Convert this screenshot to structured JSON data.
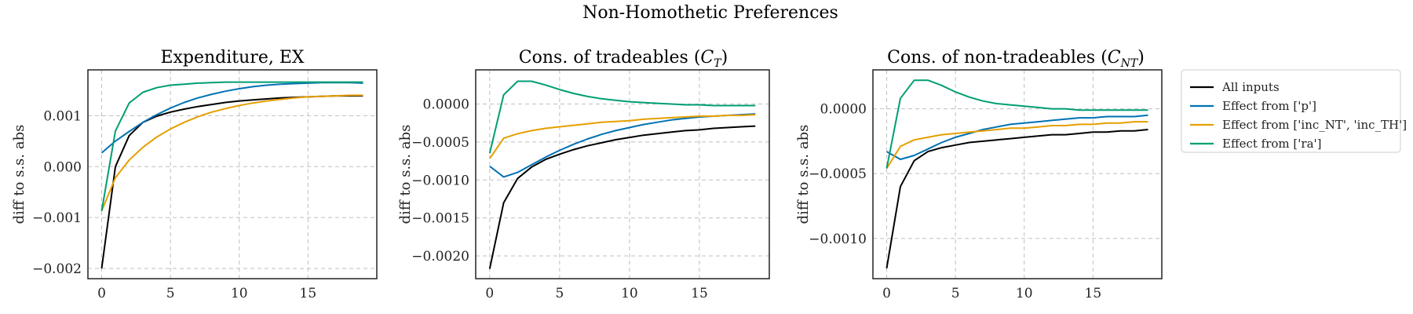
{
  "figure_title": "Non-Homothetic Preferences",
  "panels": [
    {
      "title": "Expenditure, EX",
      "ylabel": "diff to s.s. abs"
    },
    {
      "title": "Cons. of tradeables",
      "title_math": "C",
      "title_sub": "T",
      "ylabel": "diff to s.s. abs"
    },
    {
      "title": "Cons. of non-tradeables",
      "title_math": "C",
      "title_sub": "NT",
      "ylabel": "diff to s.s. abs"
    }
  ],
  "legend": {
    "location": "right, outside",
    "entries": [
      "All inputs",
      "Effect from ['p']",
      "Effect from ['inc_NT', 'inc_TH']",
      "Effect from ['ra']"
    ]
  },
  "colors": {
    "All inputs": "#000000",
    "p": "#0072B2",
    "inc": "#E69F00",
    "ra": "#009E73"
  },
  "chart_data": [
    {
      "type": "line",
      "title": "Expenditure, EX",
      "xlabel": "",
      "ylabel": "diff to s.s. abs",
      "x": [
        0,
        1,
        2,
        3,
        4,
        5,
        6,
        7,
        8,
        9,
        10,
        11,
        12,
        13,
        14,
        15,
        16,
        17,
        18,
        19
      ],
      "xticks": [
        0,
        5,
        10,
        15
      ],
      "yticks": [
        -0.002,
        -0.001,
        0.0,
        0.001
      ],
      "ytick_labels": [
        "−0.002",
        "−0.001",
        "0.000",
        "0.001"
      ],
      "xlim": [
        -1,
        20
      ],
      "ylim": [
        -0.0022,
        0.0019
      ],
      "grid": true,
      "series": [
        {
          "name": "All inputs",
          "color": "#000000",
          "values": [
            -0.002,
            0.0,
            0.00061,
            0.00087,
            0.00099,
            0.00107,
            0.00113,
            0.00118,
            0.00122,
            0.00126,
            0.00129,
            0.00131,
            0.00133,
            0.00135,
            0.00136,
            0.00137,
            0.00138,
            0.00139,
            0.00139,
            0.00139
          ]
        },
        {
          "name": "Effect from ['p']",
          "color": "#0072B2",
          "values": [
            0.00027,
            0.0005,
            0.00069,
            0.00087,
            0.00102,
            0.00115,
            0.00126,
            0.00135,
            0.00142,
            0.00148,
            0.00153,
            0.00157,
            0.0016,
            0.00162,
            0.00163,
            0.00164,
            0.00165,
            0.00165,
            0.00165,
            0.00164
          ]
        },
        {
          "name": "Effect from ['inc_NT', 'inc_TH']",
          "color": "#E69F00",
          "values": [
            -0.00087,
            -0.00022,
            0.00013,
            0.00038,
            0.00058,
            0.00074,
            0.00087,
            0.00098,
            0.00107,
            0.00114,
            0.0012,
            0.00125,
            0.00129,
            0.00132,
            0.00135,
            0.00137,
            0.00138,
            0.00139,
            0.0014,
            0.0014
          ]
        },
        {
          "name": "Effect from ['ra']",
          "color": "#009E73",
          "values": [
            -0.00087,
            0.0007,
            0.00125,
            0.00146,
            0.00155,
            0.0016,
            0.00162,
            0.00164,
            0.00165,
            0.00166,
            0.00166,
            0.00166,
            0.00166,
            0.00166,
            0.00166,
            0.00166,
            0.00166,
            0.00166,
            0.00166,
            0.00166
          ]
        }
      ]
    },
    {
      "type": "line",
      "title": "Cons. of tradeables (C_T)",
      "xlabel": "",
      "ylabel": "diff to s.s. abs",
      "x": [
        0,
        1,
        2,
        3,
        4,
        5,
        6,
        7,
        8,
        9,
        10,
        11,
        12,
        13,
        14,
        15,
        16,
        17,
        18,
        19
      ],
      "xticks": [
        0,
        5,
        10,
        15
      ],
      "yticks": [
        -0.002,
        -0.0015,
        -0.001,
        -0.0005,
        0.0
      ],
      "ytick_labels": [
        "−0.0020",
        "−0.0015",
        "−0.0010",
        "−0.0005",
        "0.0000"
      ],
      "xlim": [
        -1,
        20
      ],
      "ylim": [
        -0.0023,
        0.00045
      ],
      "grid": true,
      "series": [
        {
          "name": "All inputs",
          "color": "#000000",
          "values": [
            -0.00217,
            -0.0013,
            -0.00098,
            -0.00083,
            -0.00073,
            -0.00066,
            -0.0006,
            -0.00055,
            -0.00051,
            -0.00047,
            -0.00044,
            -0.00041,
            -0.00039,
            -0.00037,
            -0.00035,
            -0.00034,
            -0.00032,
            -0.00031,
            -0.0003,
            -0.00029
          ]
        },
        {
          "name": "Effect from ['p']",
          "color": "#0072B2",
          "values": [
            -0.00082,
            -0.00096,
            -0.0009,
            -0.0008,
            -0.0007,
            -0.00061,
            -0.00053,
            -0.00046,
            -0.0004,
            -0.00035,
            -0.00031,
            -0.00027,
            -0.00024,
            -0.00021,
            -0.00019,
            -0.00017,
            -0.00016,
            -0.00015,
            -0.00014,
            -0.00013
          ]
        },
        {
          "name": "Effect from ['inc_NT', 'inc_TH']",
          "color": "#E69F00",
          "values": [
            -0.00072,
            -0.00045,
            -0.00039,
            -0.00035,
            -0.00032,
            -0.0003,
            -0.00028,
            -0.00026,
            -0.00024,
            -0.00023,
            -0.00022,
            -0.0002,
            -0.00019,
            -0.00018,
            -0.00017,
            -0.00016,
            -0.00016,
            -0.00015,
            -0.00015,
            -0.00014
          ]
        },
        {
          "name": "Effect from ['ra']",
          "color": "#009E73",
          "values": [
            -0.00065,
            0.00012,
            0.0003,
            0.0003,
            0.00025,
            0.00019,
            0.00014,
            0.0001,
            7e-05,
            5e-05,
            3e-05,
            2e-05,
            1e-05,
            0.0,
            -1e-05,
            -1e-05,
            -2e-05,
            -2e-05,
            -2e-05,
            -2e-05
          ]
        }
      ]
    },
    {
      "type": "line",
      "title": "Cons. of non-tradeables (C_NT)",
      "xlabel": "",
      "ylabel": "diff to s.s. abs",
      "x": [
        0,
        1,
        2,
        3,
        4,
        5,
        6,
        7,
        8,
        9,
        10,
        11,
        12,
        13,
        14,
        15,
        16,
        17,
        18,
        19
      ],
      "xticks": [
        0,
        5,
        10,
        15
      ],
      "yticks": [
        -0.001,
        -0.0005,
        0.0
      ],
      "ytick_labels": [
        "−0.0010",
        "−0.0005",
        "0.0000"
      ],
      "xlim": [
        -1,
        20
      ],
      "ylim": [
        -0.00131,
        0.0003
      ],
      "grid": true,
      "series": [
        {
          "name": "All inputs",
          "color": "#000000",
          "values": [
            -0.00123,
            -0.0006,
            -0.0004,
            -0.00033,
            -0.0003,
            -0.00028,
            -0.00026,
            -0.00025,
            -0.00024,
            -0.00023,
            -0.00022,
            -0.00021,
            -0.0002,
            -0.0002,
            -0.00019,
            -0.00018,
            -0.00018,
            -0.00017,
            -0.00017,
            -0.00016
          ]
        },
        {
          "name": "Effect from ['p']",
          "color": "#0072B2",
          "values": [
            -0.00033,
            -0.00039,
            -0.00036,
            -0.00031,
            -0.00026,
            -0.00022,
            -0.00019,
            -0.00016,
            -0.00014,
            -0.00012,
            -0.00011,
            -0.0001,
            -9e-05,
            -8e-05,
            -7e-05,
            -7e-05,
            -6e-05,
            -6e-05,
            -6e-05,
            -5e-05
          ]
        },
        {
          "name": "Effect from ['inc_NT', 'inc_TH']",
          "color": "#E69F00",
          "values": [
            -0.00046,
            -0.00029,
            -0.00024,
            -0.00022,
            -0.0002,
            -0.00019,
            -0.00018,
            -0.00017,
            -0.00016,
            -0.00015,
            -0.00015,
            -0.00014,
            -0.00013,
            -0.00013,
            -0.00012,
            -0.00012,
            -0.00011,
            -0.00011,
            -0.0001,
            -0.0001
          ]
        },
        {
          "name": "Effect from ['ra']",
          "color": "#009E73",
          "values": [
            -0.00046,
            8e-05,
            0.00022,
            0.00022,
            0.00018,
            0.00013,
            9e-05,
            6e-05,
            4e-05,
            3e-05,
            2e-05,
            1e-05,
            0.0,
            0.0,
            -1e-05,
            -1e-05,
            -1e-05,
            -1e-05,
            -1e-05,
            -1e-05
          ]
        }
      ]
    }
  ]
}
